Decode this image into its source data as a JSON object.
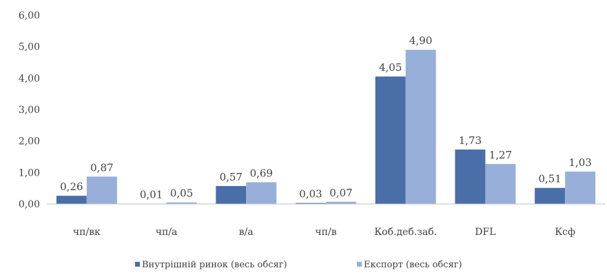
{
  "chart_data": {
    "type": "bar",
    "categories": [
      "чп/вк",
      "чп/а",
      "в/а",
      "чп/в",
      "Коб.деб.заб.",
      "DFL",
      "Ксф"
    ],
    "series": [
      {
        "name": "Внутрішній ринок (весь обсяг)",
        "values": [
          0.26,
          0.01,
          0.57,
          0.03,
          4.05,
          1.73,
          0.51
        ],
        "labels": [
          "0,26",
          "0,01",
          "0,57",
          "0,03",
          "4,05",
          "1,73",
          "0,51"
        ],
        "color": "#4a6ea8"
      },
      {
        "name": "Експорт (весь обсяг)",
        "values": [
          0.87,
          0.05,
          0.69,
          0.07,
          4.9,
          1.27,
          1.03
        ],
        "labels": [
          "0,87",
          "0,05",
          "0,69",
          "0,07",
          "4,90",
          "1,27",
          "1,03"
        ],
        "color": "#98b0d9"
      }
    ],
    "yticks": [
      "0,00",
      "1,00",
      "2,00",
      "3,00",
      "4,00",
      "5,00",
      "6,00"
    ],
    "ylim": [
      0,
      6
    ],
    "grid": false,
    "legend": "bottom"
  }
}
